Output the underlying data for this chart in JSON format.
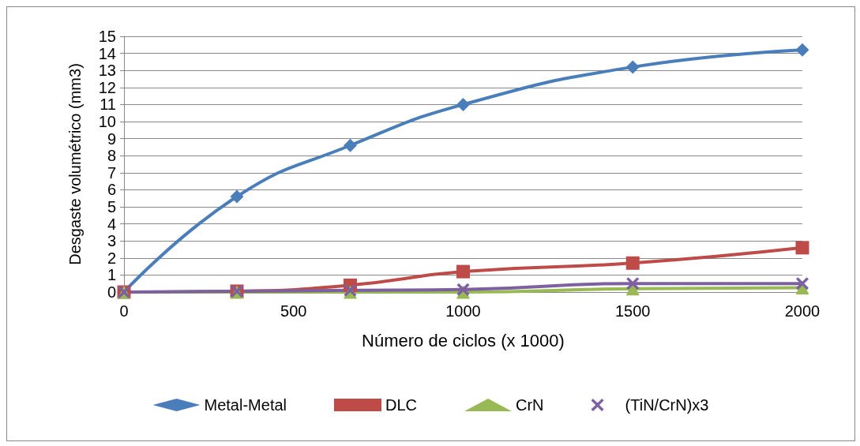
{
  "chart_data": {
    "type": "line",
    "xlabel": "Número de ciclos (x 1000)",
    "ylabel": "Desgaste volumétrico (mm3)",
    "x": [
      0,
      333,
      667,
      1000,
      1500,
      2000
    ],
    "series": [
      {
        "name": "Metal-Metal",
        "color": "#4a7ebb",
        "marker": "diamond",
        "values": [
          0,
          5.6,
          8.6,
          11,
          13.2,
          14.2
        ]
      },
      {
        "name": "DLC",
        "color": "#be4b48",
        "marker": "square",
        "values": [
          0,
          0.05,
          0.4,
          1.2,
          1.7,
          2.6
        ]
      },
      {
        "name": "CrN",
        "color": "#98b954",
        "marker": "triangle",
        "values": [
          0,
          0,
          0,
          0,
          0.2,
          0.25
        ]
      },
      {
        "name": "(TiN/CrN)x3",
        "color": "#7d60a0",
        "marker": "cross",
        "values": [
          0,
          0.05,
          0.1,
          0.15,
          0.5,
          0.5
        ]
      }
    ],
    "xlim": [
      0,
      2000
    ],
    "xticks": [
      0,
      500,
      1000,
      1500,
      2000
    ],
    "ylim": [
      0,
      15
    ],
    "yticks": [
      0,
      1,
      2,
      3,
      4,
      5,
      6,
      7,
      8,
      9,
      10,
      11,
      12,
      13,
      14,
      15
    ],
    "grid": "y",
    "legend": "bottom",
    "line_style": "solid"
  }
}
